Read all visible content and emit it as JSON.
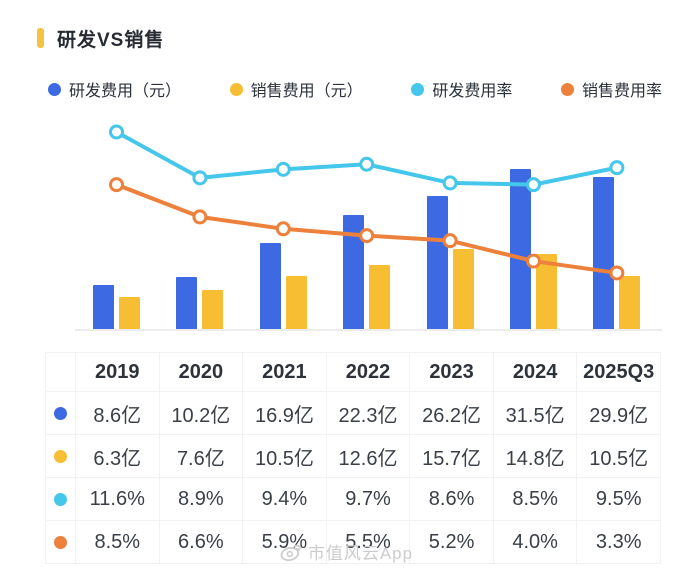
{
  "title": {
    "text": "研发VS销售",
    "accent_color": "#F6C242"
  },
  "legend": {
    "items": [
      {
        "label": "研发费用（元）",
        "color": "#3D6AE3"
      },
      {
        "label": "销售费用（元）",
        "color": "#F8BE33"
      },
      {
        "label": "研发费用率",
        "color": "#44C7EA"
      },
      {
        "label": "销售费用率",
        "color": "#ED813B"
      }
    ]
  },
  "chart_data": {
    "type": "combo",
    "categories": [
      "2019",
      "2020",
      "2021",
      "2022",
      "2023",
      "2024",
      "2025Q3"
    ],
    "series": [
      {
        "name": "研发费用（元）",
        "type": "bar",
        "unit": "亿",
        "color": "#3D6AE3",
        "values": [
          8.6,
          10.2,
          16.9,
          22.3,
          26.2,
          31.5,
          29.9
        ]
      },
      {
        "name": "销售费用（元）",
        "type": "bar",
        "unit": "亿",
        "color": "#F8BE33",
        "values": [
          6.3,
          7.6,
          10.5,
          12.6,
          15.7,
          14.8,
          10.5
        ]
      },
      {
        "name": "研发费用率",
        "type": "line",
        "unit": "%",
        "color": "#44C7EA",
        "values": [
          11.6,
          8.9,
          9.4,
          9.7,
          8.6,
          8.5,
          9.5
        ]
      },
      {
        "name": "销售费用率",
        "type": "line",
        "unit": "%",
        "color": "#ED813B",
        "values": [
          8.5,
          6.6,
          5.9,
          5.5,
          5.2,
          4.0,
          3.3
        ]
      }
    ],
    "bar_axis": {
      "min": 0,
      "max": 42,
      "unit": "亿"
    },
    "line_axis": {
      "min": 0,
      "max": 12.6,
      "unit": "%"
    },
    "grid": false,
    "legend_position": "top",
    "x_axis_labels_shown": false
  },
  "table": {
    "header": [
      "",
      "2019",
      "2020",
      "2021",
      "2022",
      "2023",
      "2024",
      "2025Q3"
    ],
    "rows": [
      {
        "swatch_color": "#3D6AE3",
        "cells": [
          "8.6亿",
          "10.2亿",
          "16.9亿",
          "22.3亿",
          "26.2亿",
          "31.5亿",
          "29.9亿"
        ]
      },
      {
        "swatch_color": "#F8BE33",
        "cells": [
          "6.3亿",
          "7.6亿",
          "10.5亿",
          "12.6亿",
          "15.7亿",
          "14.8亿",
          "10.5亿"
        ]
      },
      {
        "swatch_color": "#44C7EA",
        "cells": [
          "11.6%",
          "8.9%",
          "9.4%",
          "9.7%",
          "8.6%",
          "8.5%",
          "9.5%"
        ]
      },
      {
        "swatch_color": "#ED813B",
        "cells": [
          "8.5%",
          "6.6%",
          "5.9%",
          "5.5%",
          "5.2%",
          "4.0%",
          "3.3%"
        ]
      }
    ]
  },
  "watermark": {
    "text": "市值风云App",
    "icon": "weibo-eye-icon"
  }
}
